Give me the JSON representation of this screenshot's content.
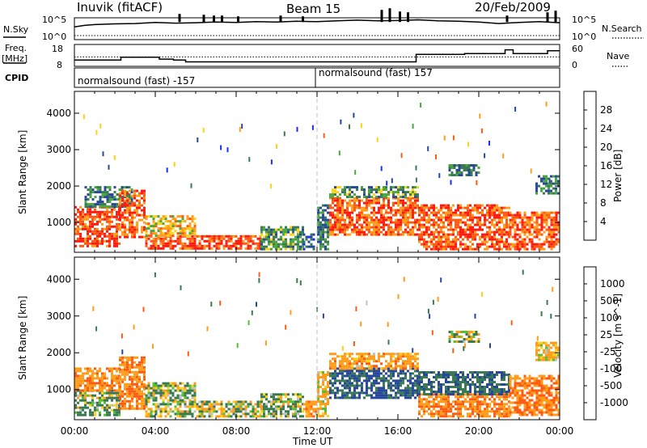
{
  "header": {
    "station": "Inuvik (fitACF)",
    "beam": "Beam 15",
    "date": "20/Feb/2009"
  },
  "status_panels": {
    "nsky_label": "N.Sky",
    "nsky_ticks": [
      "10^5",
      "10^0"
    ],
    "nsearch_label": "N.Search",
    "nsearch_ticks": [
      "10^5",
      "10^0"
    ],
    "freq_label_1": "Freq.",
    "freq_label_2": "[MHz]",
    "freq_ticks": [
      "18",
      "8"
    ],
    "nave_label": "Nave",
    "nave_ticks": [
      "60",
      "0"
    ],
    "cpid_label": "CPID",
    "cpid_segments": [
      {
        "label": "normalsound (fast) -157",
        "start_hour": 0,
        "end_hour": 12
      },
      {
        "label": "normalsound (fast) 157",
        "start_hour": 12,
        "end_hour": 24
      }
    ],
    "nsky_series": [
      [
        0,
        3
      ],
      [
        0.5,
        3.4
      ],
      [
        1,
        3.6
      ],
      [
        2,
        3.8
      ],
      [
        3,
        3.9
      ],
      [
        4,
        4.2
      ],
      [
        5,
        4.0
      ],
      [
        6,
        4.1
      ],
      [
        7,
        4.3
      ],
      [
        8,
        4.2
      ],
      [
        9,
        4.4
      ],
      [
        10,
        4.3
      ],
      [
        11,
        4.5
      ],
      [
        12,
        4.4
      ],
      [
        13,
        4.6
      ],
      [
        14,
        4.8
      ],
      [
        15,
        4.6
      ],
      [
        16,
        4.7
      ],
      [
        17,
        4.9
      ],
      [
        18,
        4.6
      ],
      [
        19,
        4.5
      ],
      [
        20,
        4.3
      ],
      [
        21,
        3.9
      ],
      [
        22,
        4.2
      ],
      [
        23,
        4.4
      ],
      [
        24,
        4.1
      ]
    ],
    "nsky_spikes": [
      [
        5.2,
        1
      ],
      [
        6.4,
        0.9
      ],
      [
        6.9,
        0.8
      ],
      [
        7.3,
        0.8
      ],
      [
        8.1,
        0.7
      ],
      [
        10.2,
        0.8
      ],
      [
        11.3,
        0.7
      ],
      [
        15.2,
        1.5
      ],
      [
        15.6,
        1.7
      ],
      [
        16.1,
        1.3
      ],
      [
        16.5,
        1.2
      ],
      [
        21.4,
        0.8
      ],
      [
        23.4,
        1.2
      ],
      [
        23.8,
        1.4
      ]
    ],
    "freq_series": [
      [
        0,
        10.5
      ],
      [
        2.3,
        10.5
      ],
      [
        2.3,
        12
      ],
      [
        4.2,
        12
      ],
      [
        4.2,
        11
      ],
      [
        4.9,
        11
      ],
      [
        4.9,
        10.5
      ],
      [
        5.5,
        10.5
      ],
      [
        5.5,
        9.5
      ],
      [
        16.9,
        9.5
      ],
      [
        16.9,
        13.5
      ],
      [
        19.3,
        13.5
      ],
      [
        19.3,
        14
      ],
      [
        21.3,
        14
      ],
      [
        21.3,
        16
      ],
      [
        21.7,
        16
      ],
      [
        21.7,
        14
      ],
      [
        23.4,
        14
      ],
      [
        23.4,
        15.5
      ],
      [
        24,
        15.5
      ]
    ],
    "nave_level": 25
  },
  "chart_data": [
    {
      "type": "heatmap",
      "title": "Power",
      "ylabel": "Slant Range [km]",
      "xlabel": "Time UT",
      "xlim": [
        0,
        24
      ],
      "ylim": [
        180,
        4600
      ],
      "xticks": [
        "00:00",
        "04:00",
        "08:00",
        "12:00",
        "16:00",
        "20:00",
        "00:00"
      ],
      "yticks": [
        1000,
        2000,
        3000,
        4000
      ],
      "colorbar": {
        "label": "Power [dB]",
        "ticks": [
          4,
          8,
          12,
          16,
          20,
          24,
          28
        ],
        "colors": [
          "#1a2dff",
          "#27479a",
          "#3a7a52",
          "#4aa640",
          "#ffd21a",
          "#ff9c1a",
          "#ff5a12",
          "#ff1a10"
        ]
      },
      "echo_regions": [
        {
          "t0": 0.0,
          "t1": 2.2,
          "r0": 350,
          "r1": 1450,
          "level": 28
        },
        {
          "t0": 0.5,
          "t1": 2.8,
          "r0": 1450,
          "r1": 2000,
          "level": 10
        },
        {
          "t0": 2.2,
          "t1": 3.5,
          "r0": 600,
          "r1": 1900,
          "level": 26
        },
        {
          "t0": 3.5,
          "t1": 9.2,
          "r0": 300,
          "r1": 650,
          "level": 28
        },
        {
          "t0": 3.5,
          "t1": 6.0,
          "r0": 650,
          "r1": 1200,
          "level": 20
        },
        {
          "t0": 9.2,
          "t1": 11.3,
          "r0": 300,
          "r1": 900,
          "level": 12
        },
        {
          "t0": 11.3,
          "t1": 11.9,
          "r0": 250,
          "r1": 700,
          "level": 6
        },
        {
          "t0": 12.0,
          "t1": 12.6,
          "r0": 300,
          "r1": 1500,
          "level": 10
        },
        {
          "t0": 12.6,
          "t1": 17.0,
          "r0": 700,
          "r1": 1700,
          "level": 26
        },
        {
          "t0": 12.6,
          "t1": 17.0,
          "r0": 1700,
          "r1": 2000,
          "level": 12
        },
        {
          "t0": 17.0,
          "t1": 21.5,
          "r0": 300,
          "r1": 1500,
          "level": 27
        },
        {
          "t0": 18.5,
          "t1": 20.0,
          "r0": 2300,
          "r1": 2600,
          "level": 10
        },
        {
          "t0": 21.5,
          "t1": 24.0,
          "r0": 300,
          "r1": 1300,
          "level": 26
        },
        {
          "t0": 22.8,
          "t1": 24.0,
          "r0": 1800,
          "r1": 2300,
          "level": 10
        }
      ]
    },
    {
      "type": "heatmap",
      "title": "Velocity",
      "ylabel": "Slant Range [km]",
      "xlabel": "Time UT",
      "xlim": [
        0,
        24
      ],
      "ylim": [
        180,
        4600
      ],
      "xticks": [
        "00:00",
        "04:00",
        "08:00",
        "12:00",
        "16:00",
        "20:00",
        "00:00"
      ],
      "yticks": [
        1000,
        2000,
        3000,
        4000
      ],
      "colorbar": {
        "label": "Velocity [m s^-1]",
        "ticks": [
          1000,
          500,
          100,
          25,
          -25,
          -100,
          -500,
          -1000
        ],
        "colors": [
          "#1a2dff",
          "#27479a",
          "#3a7a52",
          "#55c030",
          "#c0c0c0",
          "#ffd21a",
          "#ff9c1a",
          "#ff5a12",
          "#ff1a10"
        ]
      },
      "echo_regions": [
        {
          "t0": 0.0,
          "t1": 2.2,
          "r0": 300,
          "r1": 1000,
          "level": 150
        },
        {
          "t0": 0.0,
          "t1": 2.2,
          "r0": 1000,
          "r1": 1600,
          "level": -400
        },
        {
          "t0": 2.2,
          "t1": 3.5,
          "r0": 500,
          "r1": 1900,
          "level": -450
        },
        {
          "t0": 3.5,
          "t1": 9.2,
          "r0": 300,
          "r1": 700,
          "level": 0
        },
        {
          "t0": 3.5,
          "t1": 6.0,
          "r0": 700,
          "r1": 1200,
          "level": 60
        },
        {
          "t0": 9.2,
          "t1": 11.3,
          "r0": 300,
          "r1": 900,
          "level": 80
        },
        {
          "t0": 11.3,
          "t1": 12.0,
          "r0": 250,
          "r1": 700,
          "level": -300
        },
        {
          "t0": 12.0,
          "t1": 12.6,
          "r0": 300,
          "r1": 1500,
          "level": -200
        },
        {
          "t0": 12.6,
          "t1": 17.0,
          "r0": 800,
          "r1": 1600,
          "level": 600
        },
        {
          "t0": 12.6,
          "t1": 17.0,
          "r0": 1600,
          "r1": 2000,
          "level": -300
        },
        {
          "t0": 17.0,
          "t1": 21.5,
          "r0": 300,
          "r1": 900,
          "level": -450
        },
        {
          "t0": 17.0,
          "t1": 21.5,
          "r0": 900,
          "r1": 1500,
          "level": 500
        },
        {
          "t0": 18.5,
          "t1": 20.0,
          "r0": 2300,
          "r1": 2600,
          "level": 0
        },
        {
          "t0": 21.5,
          "t1": 24.0,
          "r0": 300,
          "r1": 1400,
          "level": -500
        },
        {
          "t0": 22.8,
          "t1": 24.0,
          "r0": 1800,
          "r1": 2300,
          "level": -200
        }
      ]
    }
  ]
}
